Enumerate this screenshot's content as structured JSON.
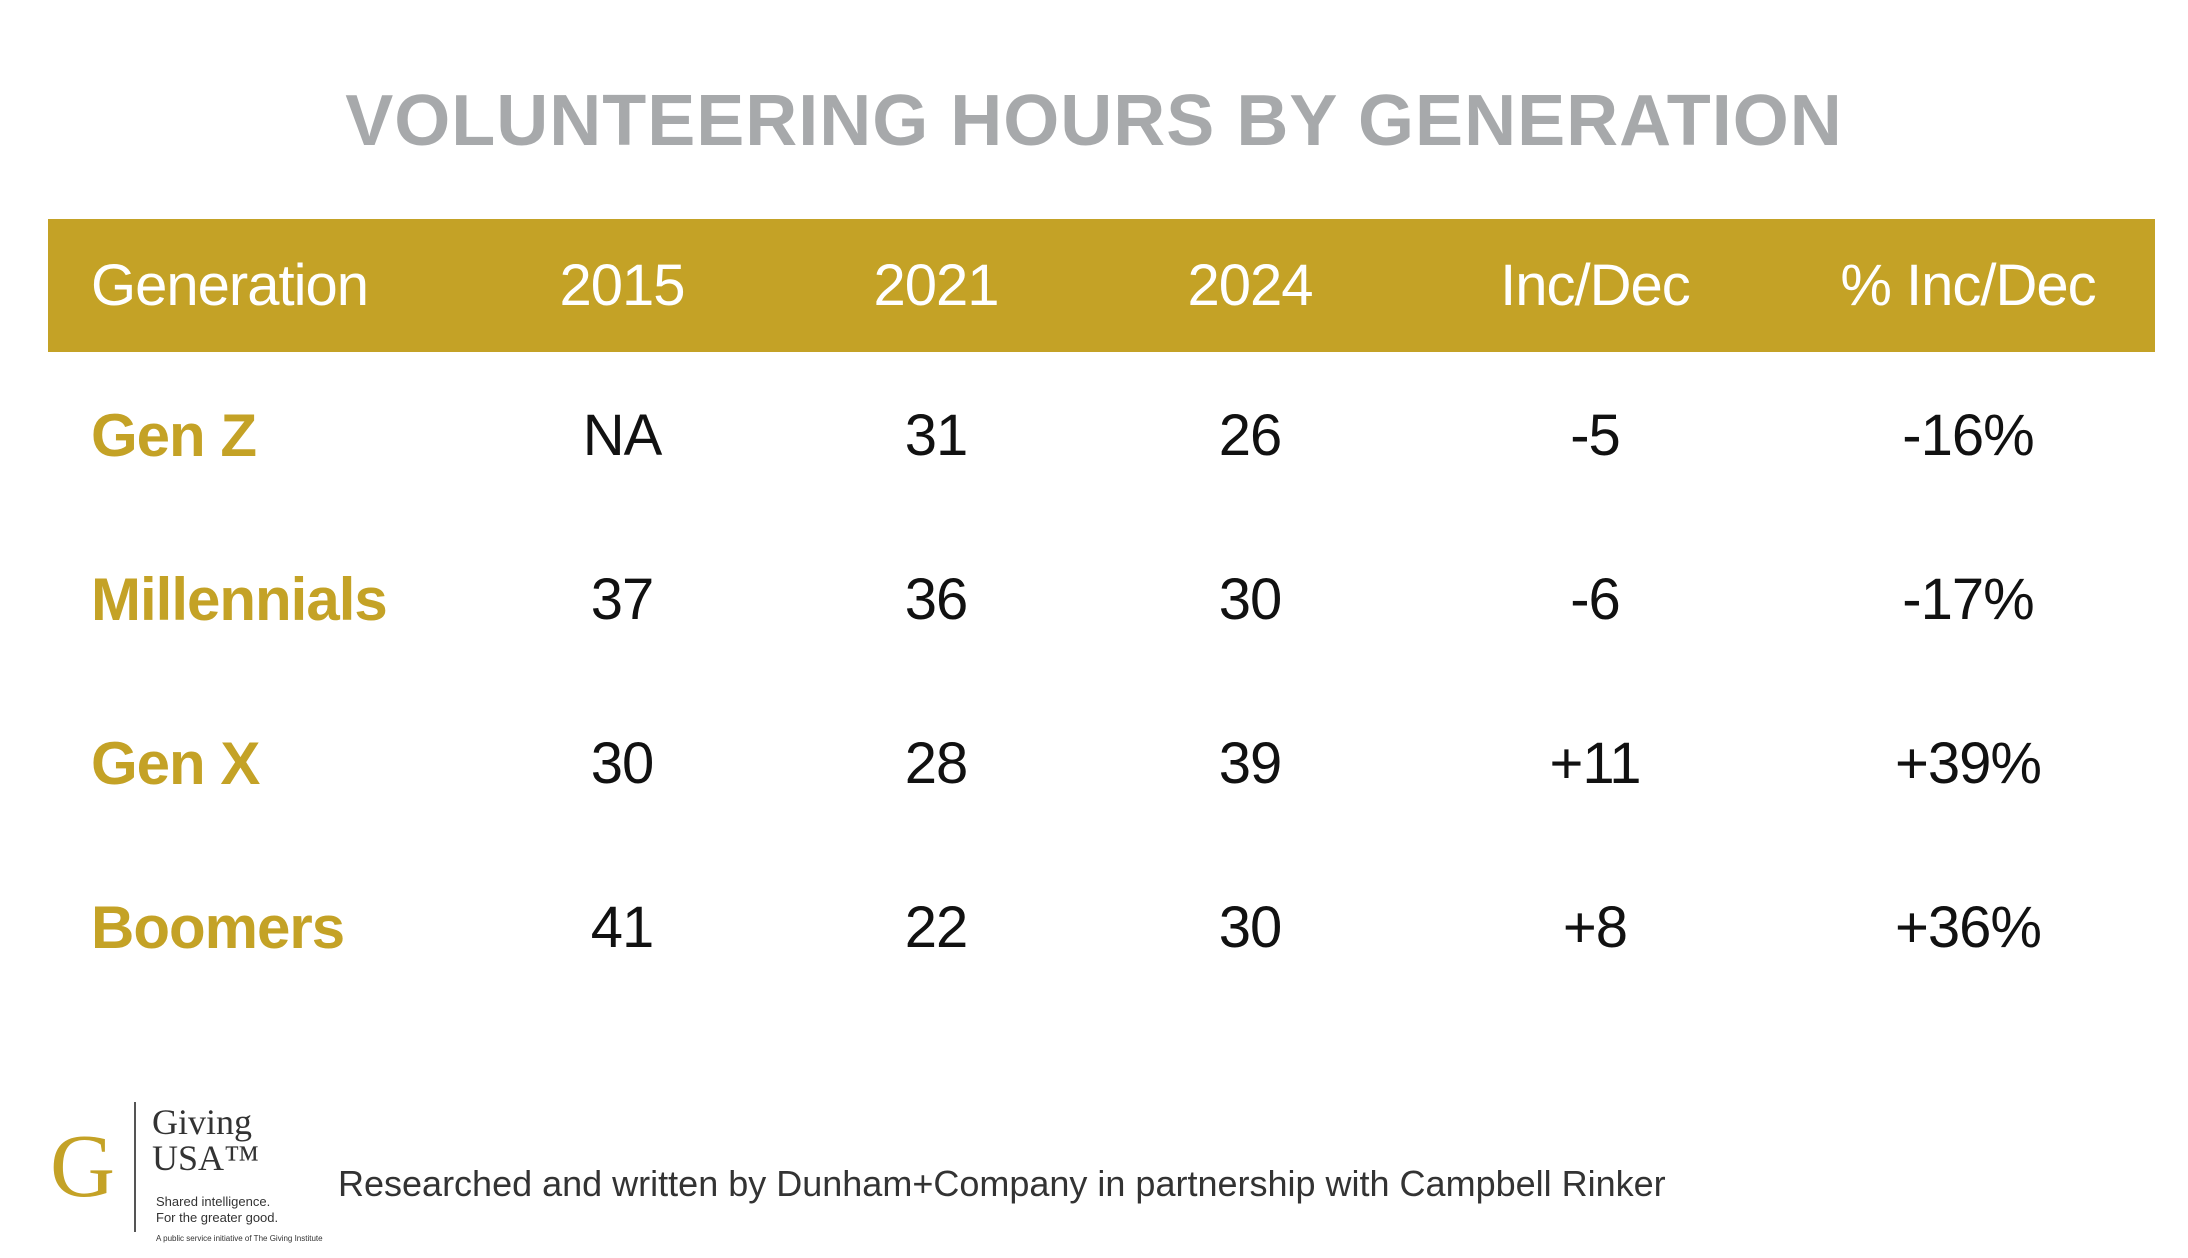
{
  "chart_data": {
    "type": "table",
    "title": "VOLUNTEERING HOURS BY GENERATION",
    "columns": [
      "Generation",
      "2015",
      "2021",
      "2024",
      "Inc/Dec",
      "% Inc/Dec"
    ],
    "rows": [
      [
        "Gen Z",
        "NA",
        "31",
        "26",
        "-5",
        "-16%"
      ],
      [
        "Millennials",
        "37",
        "36",
        "30",
        "-6",
        "-17%"
      ],
      [
        "Gen X",
        "30",
        "28",
        "39",
        "+11",
        "+39%"
      ],
      [
        "Boomers",
        "41",
        "22",
        "30",
        "+8",
        "+36%"
      ]
    ],
    "header_color": "#c4a226",
    "label_color": "#c4a226"
  },
  "footer": {
    "logo_mark": "G",
    "logo_name_line1": "Giving",
    "logo_name_line2": "USA™",
    "logo_tagline_line1": "Shared intelligence.",
    "logo_tagline_line2": "For the greater good.",
    "logo_small": "A public service initiative of The Giving Institute",
    "credit": "Researched and written by Dunham+Company in partnership with Campbell Rinker"
  }
}
